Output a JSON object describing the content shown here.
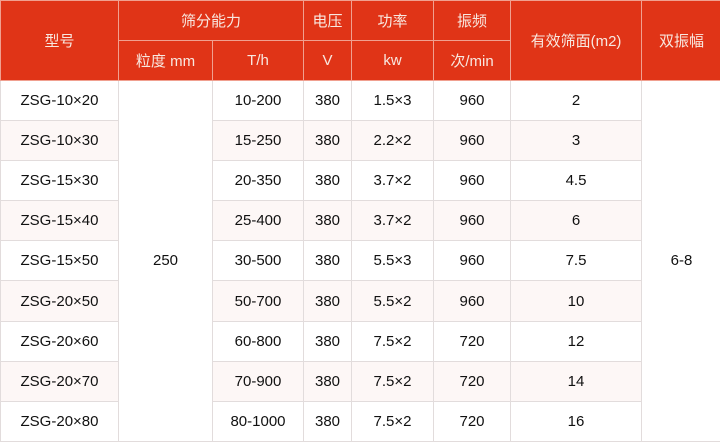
{
  "header": {
    "model": "型号",
    "capacity": "筛分能力",
    "voltage": "电压",
    "power": "功率",
    "frequency": "振频",
    "area": "有效筛面(m2)",
    "amplitude": "双振幅",
    "granularity_unit": "粒度 mm",
    "throughput_unit": "T/h",
    "voltage_unit": "V",
    "power_unit": "kw",
    "frequency_unit": "次/min"
  },
  "granularity": "250",
  "amplitude_value": "6-8",
  "rows": [
    {
      "model": "ZSG-10×20",
      "throughput": "10-200",
      "voltage": "380",
      "power": "1.5×3",
      "frequency": "960",
      "area": "2"
    },
    {
      "model": "ZSG-10×30",
      "throughput": "15-250",
      "voltage": "380",
      "power": "2.2×2",
      "frequency": "960",
      "area": "3"
    },
    {
      "model": "ZSG-15×30",
      "throughput": "20-350",
      "voltage": "380",
      "power": "3.7×2",
      "frequency": "960",
      "area": "4.5"
    },
    {
      "model": "ZSG-15×40",
      "throughput": "25-400",
      "voltage": "380",
      "power": "3.7×2",
      "frequency": "960",
      "area": "6"
    },
    {
      "model": "ZSG-15×50",
      "throughput": "30-500",
      "voltage": "380",
      "power": "5.5×3",
      "frequency": "960",
      "area": "7.5"
    },
    {
      "model": "ZSG-20×50",
      "throughput": "50-700",
      "voltage": "380",
      "power": "5.5×2",
      "frequency": "960",
      "area": "10"
    },
    {
      "model": "ZSG-20×60",
      "throughput": "60-800",
      "voltage": "380",
      "power": "7.5×2",
      "frequency": "720",
      "area": "12"
    },
    {
      "model": "ZSG-20×70",
      "throughput": "70-900",
      "voltage": "380",
      "power": "7.5×2",
      "frequency": "720",
      "area": "14"
    },
    {
      "model": "ZSG-20×80",
      "throughput": "80-1000",
      "voltage": "380",
      "power": "7.5×2",
      "frequency": "720",
      "area": "16"
    }
  ],
  "colors": {
    "header_bg": "#e03417",
    "header_text": "#f8e8e0",
    "alt_row": "#fdf7f6",
    "border": "#e2dcdc"
  }
}
